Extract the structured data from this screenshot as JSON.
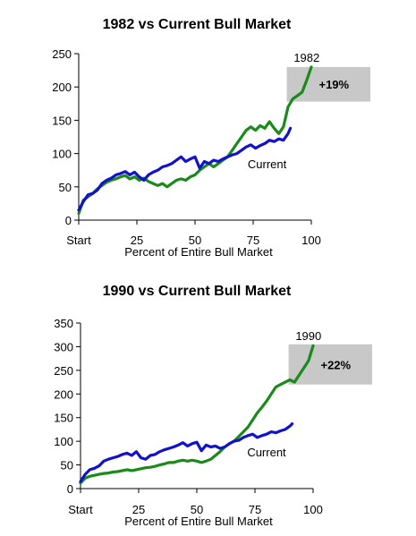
{
  "chart_data": [
    {
      "type": "line",
      "title": "1982 vs Current Bull Market",
      "xlabel": "Percent of Entire Bull Market",
      "ylabel": "",
      "x_tick_labels": [
        "Start",
        "25",
        "50",
        "75",
        "100"
      ],
      "x_tick_values": [
        0,
        25,
        50,
        75,
        100
      ],
      "y_ticks": [
        0,
        50,
        100,
        150,
        200,
        250
      ],
      "xlim": [
        0,
        100
      ],
      "ylim": [
        0,
        250
      ],
      "grid": false,
      "annotation": {
        "text": "+19%",
        "x_range": [
          91,
          100
        ],
        "y_range": [
          178,
          230
        ],
        "color": "#c8c8c8"
      },
      "series": [
        {
          "name": "1982",
          "color": "#1a8a1a",
          "label_x": 98,
          "label_y": 238,
          "points": [
            [
              0,
              10
            ],
            [
              2,
              30
            ],
            [
              4,
              35
            ],
            [
              6,
              40
            ],
            [
              8,
              47
            ],
            [
              10,
              52
            ],
            [
              12,
              57
            ],
            [
              14,
              60
            ],
            [
              16,
              62
            ],
            [
              18,
              65
            ],
            [
              20,
              67
            ],
            [
              22,
              62
            ],
            [
              24,
              65
            ],
            [
              26,
              60
            ],
            [
              28,
              63
            ],
            [
              30,
              58
            ],
            [
              32,
              55
            ],
            [
              34,
              52
            ],
            [
              36,
              55
            ],
            [
              38,
              50
            ],
            [
              40,
              55
            ],
            [
              42,
              60
            ],
            [
              44,
              62
            ],
            [
              46,
              60
            ],
            [
              48,
              65
            ],
            [
              50,
              68
            ],
            [
              52,
              75
            ],
            [
              54,
              80
            ],
            [
              56,
              85
            ],
            [
              58,
              80
            ],
            [
              60,
              85
            ],
            [
              62,
              90
            ],
            [
              64,
              95
            ],
            [
              66,
              105
            ],
            [
              68,
              115
            ],
            [
              70,
              125
            ],
            [
              72,
              135
            ],
            [
              74,
              140
            ],
            [
              76,
              135
            ],
            [
              78,
              142
            ],
            [
              80,
              138
            ],
            [
              82,
              148
            ],
            [
              84,
              138
            ],
            [
              86,
              130
            ],
            [
              88,
              140
            ],
            [
              90,
              170
            ],
            [
              92,
              182
            ],
            [
              94,
              187
            ],
            [
              96,
              192
            ],
            [
              98,
              210
            ],
            [
              100,
              230
            ]
          ]
        },
        {
          "name": "Current",
          "color": "#1212cc",
          "label_x": 81,
          "label_y": 78,
          "points": [
            [
              0,
              15
            ],
            [
              2,
              28
            ],
            [
              4,
              38
            ],
            [
              6,
              40
            ],
            [
              8,
              45
            ],
            [
              10,
              55
            ],
            [
              12,
              60
            ],
            [
              14,
              63
            ],
            [
              16,
              68
            ],
            [
              18,
              70
            ],
            [
              20,
              73
            ],
            [
              22,
              68
            ],
            [
              24,
              72
            ],
            [
              26,
              65
            ],
            [
              28,
              60
            ],
            [
              30,
              68
            ],
            [
              32,
              72
            ],
            [
              34,
              75
            ],
            [
              36,
              80
            ],
            [
              38,
              82
            ],
            [
              40,
              85
            ],
            [
              42,
              90
            ],
            [
              44,
              95
            ],
            [
              46,
              88
            ],
            [
              48,
              92
            ],
            [
              50,
              95
            ],
            [
              52,
              78
            ],
            [
              54,
              88
            ],
            [
              56,
              85
            ],
            [
              58,
              90
            ],
            [
              60,
              88
            ],
            [
              62,
              92
            ],
            [
              64,
              95
            ],
            [
              66,
              98
            ],
            [
              68,
              100
            ],
            [
              70,
              105
            ],
            [
              72,
              110
            ],
            [
              74,
              113
            ],
            [
              76,
              108
            ],
            [
              78,
              112
            ],
            [
              80,
              115
            ],
            [
              82,
              120
            ],
            [
              84,
              118
            ],
            [
              86,
              122
            ],
            [
              88,
              120
            ],
            [
              90,
              130
            ],
            [
              91,
              138
            ]
          ]
        }
      ]
    },
    {
      "type": "line",
      "title": "1990 vs Current Bull Market",
      "xlabel": "Percent of Entire Bull Market",
      "ylabel": "",
      "x_tick_labels": [
        "Start",
        "25",
        "50",
        "75",
        "100"
      ],
      "x_tick_values": [
        0,
        25,
        50,
        75,
        100
      ],
      "y_ticks": [
        0,
        50,
        100,
        150,
        200,
        250,
        300,
        350
      ],
      "xlim": [
        0,
        100
      ],
      "ylim": [
        0,
        350
      ],
      "grid": false,
      "annotation": {
        "text": "+22%",
        "x_range": [
          91,
          100
        ],
        "y_range": [
          220,
          305
        ],
        "color": "#c8c8c8"
      },
      "series": [
        {
          "name": "1990",
          "color": "#1a8a1a",
          "label_x": 98,
          "label_y": 314,
          "points": [
            [
              0,
              12
            ],
            [
              2,
              22
            ],
            [
              4,
              26
            ],
            [
              6,
              28
            ],
            [
              8,
              30
            ],
            [
              10,
              32
            ],
            [
              12,
              33
            ],
            [
              14,
              35
            ],
            [
              16,
              36
            ],
            [
              18,
              38
            ],
            [
              20,
              40
            ],
            [
              22,
              38
            ],
            [
              24,
              40
            ],
            [
              26,
              42
            ],
            [
              28,
              44
            ],
            [
              30,
              45
            ],
            [
              32,
              47
            ],
            [
              34,
              50
            ],
            [
              36,
              52
            ],
            [
              38,
              55
            ],
            [
              40,
              55
            ],
            [
              42,
              58
            ],
            [
              44,
              60
            ],
            [
              46,
              58
            ],
            [
              48,
              60
            ],
            [
              50,
              58
            ],
            [
              52,
              55
            ],
            [
              54,
              58
            ],
            [
              56,
              62
            ],
            [
              58,
              70
            ],
            [
              60,
              78
            ],
            [
              62,
              88
            ],
            [
              64,
              95
            ],
            [
              66,
              100
            ],
            [
              68,
              110
            ],
            [
              70,
              120
            ],
            [
              72,
              130
            ],
            [
              74,
              145
            ],
            [
              76,
              160
            ],
            [
              78,
              172
            ],
            [
              80,
              185
            ],
            [
              82,
              200
            ],
            [
              84,
              215
            ],
            [
              86,
              220
            ],
            [
              88,
              225
            ],
            [
              90,
              230
            ],
            [
              92,
              225
            ],
            [
              94,
              240
            ],
            [
              96,
              255
            ],
            [
              98,
              270
            ],
            [
              100,
              302
            ]
          ]
        },
        {
          "name": "Current",
          "color": "#1212cc",
          "label_x": 80,
          "label_y": 68,
          "points": [
            [
              0,
              15
            ],
            [
              2,
              30
            ],
            [
              4,
              40
            ],
            [
              6,
              43
            ],
            [
              8,
              48
            ],
            [
              10,
              58
            ],
            [
              12,
              62
            ],
            [
              14,
              65
            ],
            [
              16,
              68
            ],
            [
              18,
              72
            ],
            [
              20,
              75
            ],
            [
              22,
              70
            ],
            [
              24,
              78
            ],
            [
              26,
              65
            ],
            [
              28,
              62
            ],
            [
              30,
              70
            ],
            [
              32,
              72
            ],
            [
              34,
              78
            ],
            [
              36,
              82
            ],
            [
              38,
              85
            ],
            [
              40,
              88
            ],
            [
              42,
              92
            ],
            [
              44,
              97
            ],
            [
              46,
              90
            ],
            [
              48,
              95
            ],
            [
              50,
              98
            ],
            [
              52,
              80
            ],
            [
              54,
              92
            ],
            [
              56,
              88
            ],
            [
              58,
              90
            ],
            [
              60,
              85
            ],
            [
              62,
              88
            ],
            [
              64,
              95
            ],
            [
              66,
              100
            ],
            [
              68,
              102
            ],
            [
              70,
              108
            ],
            [
              72,
              112
            ],
            [
              74,
              115
            ],
            [
              76,
              108
            ],
            [
              78,
              112
            ],
            [
              80,
              115
            ],
            [
              82,
              120
            ],
            [
              84,
              118
            ],
            [
              86,
              122
            ],
            [
              88,
              125
            ],
            [
              90,
              132
            ],
            [
              91,
              137
            ]
          ]
        }
      ]
    }
  ]
}
